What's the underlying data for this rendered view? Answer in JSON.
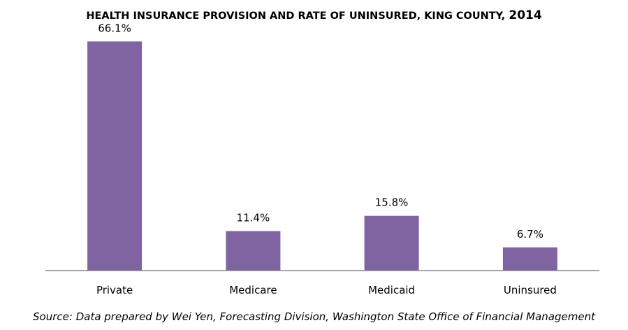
{
  "chart_data": {
    "type": "bar",
    "title": "HEALTH INSURANCE PROVISION AND RATE OF UNINSURED, KING COUNTY,",
    "title_year": "2014",
    "categories": [
      "Private",
      "Medicare",
      "Medicaid",
      "Uninsured"
    ],
    "values": [
      66.1,
      11.4,
      15.8,
      6.7
    ],
    "data_labels": [
      "66.1%",
      "11.4%",
      "15.8%",
      "6.7%"
    ],
    "unit": "%",
    "ylim": [
      0,
      70
    ],
    "grid": false,
    "legend": "none",
    "bar_color": "#8064a2",
    "axis_color": "#868686"
  },
  "source": "Source: Data prepared by Wei Yen, Forecasting Division, Washington State Office of Financial Management"
}
